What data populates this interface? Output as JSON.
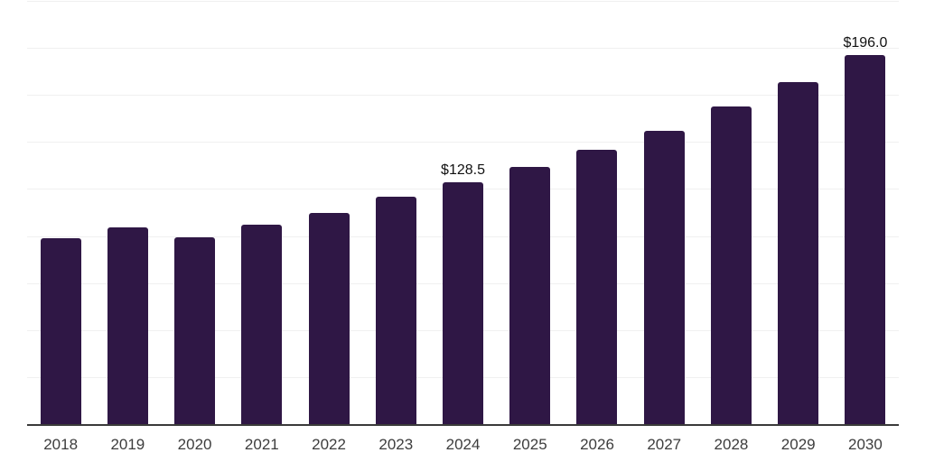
{
  "chart_data": {
    "type": "bar",
    "categories": [
      "2018",
      "2019",
      "2020",
      "2021",
      "2022",
      "2023",
      "2024",
      "2025",
      "2026",
      "2027",
      "2028",
      "2029",
      "2030"
    ],
    "values": [
      98.8,
      104.6,
      99.3,
      105.8,
      112.3,
      121.0,
      128.5,
      136.8,
      145.9,
      156.0,
      169.0,
      181.7,
      196.0
    ],
    "data_labels": {
      "2024": "$128.5",
      "2030": "$196.0"
    },
    "title": "",
    "xlabel": "",
    "ylabel": "",
    "ylim": [
      0,
      225
    ],
    "gridline_step": 25,
    "grid": "horizontal-only",
    "y_axis_labels_visible": false,
    "legend_position": "none",
    "colors": {
      "bar": "#2f1745",
      "axis_line": "#3a3a3a",
      "gridline": "#f0f0f0",
      "tick_label": "#3d3d3d",
      "value_label": "#111111",
      "background": "#ffffff"
    }
  }
}
